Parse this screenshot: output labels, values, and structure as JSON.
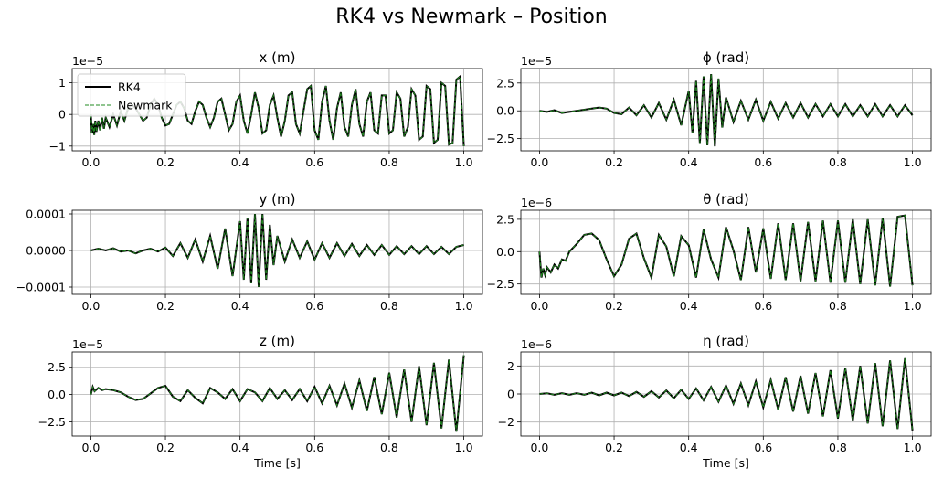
{
  "figure": {
    "title": "RK4 vs Newmark – Position"
  },
  "legend": {
    "location": "upper-left of first subplot",
    "entries": [
      {
        "label": "RK4",
        "color": "#000000",
        "style": "solid"
      },
      {
        "label": "Newmark",
        "color": "#228B22",
        "style": "dashed"
      }
    ]
  },
  "chart_data": [
    {
      "type": "line",
      "title": "x (m)",
      "xlabel": "",
      "ylabel": "",
      "offset_label": "1e−5",
      "xlim": [
        -0.05,
        1.05
      ],
      "ylim": [
        -1.15,
        1.45
      ],
      "xticks": [
        0.0,
        0.2,
        0.4,
        0.6,
        0.8,
        1.0
      ],
      "xtick_labels": [
        "0.0",
        "0.2",
        "0.4",
        "0.6",
        "0.8",
        "1.0"
      ],
      "yticks": [
        -1,
        0,
        1
      ],
      "ytick_labels": [
        "−1",
        "0",
        "1"
      ],
      "grid": true,
      "legend": true,
      "series": [
        {
          "name": "RK4",
          "color": "#000000",
          "style": "solid",
          "x": [
            0.0,
            0.003,
            0.006,
            0.009,
            0.012,
            0.015,
            0.02,
            0.025,
            0.03,
            0.035,
            0.04,
            0.05,
            0.06,
            0.07,
            0.08,
            0.09,
            0.1,
            0.11,
            0.12,
            0.13,
            0.14,
            0.15,
            0.16,
            0.17,
            0.18,
            0.19,
            0.2,
            0.21,
            0.22,
            0.23,
            0.24,
            0.25,
            0.26,
            0.27,
            0.28,
            0.29,
            0.3,
            0.31,
            0.32,
            0.33,
            0.34,
            0.35,
            0.36,
            0.37,
            0.38,
            0.39,
            0.4,
            0.41,
            0.42,
            0.43,
            0.44,
            0.45,
            0.46,
            0.47,
            0.48,
            0.49,
            0.5,
            0.51,
            0.52,
            0.53,
            0.54,
            0.55,
            0.56,
            0.57,
            0.58,
            0.59,
            0.6,
            0.61,
            0.62,
            0.63,
            0.64,
            0.65,
            0.66,
            0.67,
            0.68,
            0.69,
            0.7,
            0.71,
            0.72,
            0.73,
            0.74,
            0.75,
            0.76,
            0.77,
            0.78,
            0.79,
            0.8,
            0.81,
            0.82,
            0.83,
            0.84,
            0.85,
            0.86,
            0.87,
            0.88,
            0.89,
            0.9,
            0.91,
            0.92,
            0.93,
            0.94,
            0.95,
            0.96,
            0.97,
            0.98,
            0.99,
            1.0
          ],
          "y": [
            0.0,
            -0.6,
            -0.3,
            -0.65,
            -0.2,
            -0.55,
            -0.2,
            -0.5,
            -0.1,
            -0.45,
            -0.1,
            -0.4,
            0.0,
            -0.35,
            0.1,
            -0.2,
            0.2,
            0.3,
            0.2,
            0.0,
            -0.2,
            -0.1,
            0.3,
            0.5,
            0.3,
            -0.1,
            -0.35,
            -0.3,
            0.0,
            0.3,
            0.4,
            0.2,
            -0.2,
            -0.3,
            0.1,
            0.4,
            0.3,
            -0.1,
            -0.4,
            -0.1,
            0.4,
            0.5,
            0.0,
            -0.5,
            -0.3,
            0.4,
            0.6,
            -0.2,
            -0.6,
            0.0,
            0.7,
            0.2,
            -0.6,
            -0.5,
            0.3,
            0.6,
            -0.1,
            -0.7,
            -0.2,
            0.6,
            0.7,
            -0.3,
            -0.6,
            0.1,
            0.8,
            0.9,
            -0.5,
            -0.8,
            0.4,
            0.9,
            -0.2,
            -0.8,
            0.2,
            0.7,
            -0.4,
            -0.7,
            0.3,
            0.8,
            -0.3,
            -0.7,
            0.4,
            0.7,
            -0.5,
            -0.6,
            0.6,
            0.6,
            -0.6,
            -0.5,
            0.7,
            0.5,
            -0.7,
            -0.4,
            0.8,
            0.6,
            -0.8,
            -0.7,
            0.9,
            0.8,
            -0.9,
            -0.8,
            1.0,
            0.9,
            -0.95,
            -0.9,
            1.1,
            1.2,
            -1.0
          ]
        },
        {
          "name": "Newmark",
          "color": "#228B22",
          "style": "dashed",
          "same_as": "RK4"
        }
      ]
    },
    {
      "type": "line",
      "title": "ϕ (rad)",
      "xlabel": "",
      "ylabel": "",
      "offset_label": "1e−5",
      "xlim": [
        -0.05,
        1.05
      ],
      "ylim": [
        -3.6,
        3.8
      ],
      "xticks": [
        0.0,
        0.2,
        0.4,
        0.6,
        0.8,
        1.0
      ],
      "xtick_labels": [
        "0.0",
        "0.2",
        "0.4",
        "0.6",
        "0.8",
        "1.0"
      ],
      "yticks": [
        -2.5,
        0.0,
        2.5
      ],
      "ytick_labels": [
        "−2.5",
        "0.0",
        "2.5"
      ],
      "grid": true,
      "series": [
        {
          "name": "RK4",
          "color": "#000000",
          "style": "solid",
          "x": [
            0.0,
            0.02,
            0.04,
            0.06,
            0.08,
            0.1,
            0.12,
            0.14,
            0.16,
            0.18,
            0.2,
            0.22,
            0.24,
            0.26,
            0.28,
            0.3,
            0.32,
            0.34,
            0.36,
            0.38,
            0.4,
            0.41,
            0.42,
            0.43,
            0.44,
            0.45,
            0.46,
            0.47,
            0.48,
            0.49,
            0.5,
            0.52,
            0.54,
            0.56,
            0.58,
            0.6,
            0.62,
            0.64,
            0.66,
            0.68,
            0.7,
            0.72,
            0.74,
            0.76,
            0.78,
            0.8,
            0.82,
            0.84,
            0.86,
            0.88,
            0.9,
            0.92,
            0.94,
            0.96,
            0.98,
            1.0
          ],
          "y": [
            0.0,
            -0.1,
            0.05,
            -0.2,
            -0.1,
            0.0,
            0.1,
            0.2,
            0.3,
            0.2,
            -0.2,
            -0.3,
            0.3,
            -0.4,
            0.5,
            -0.6,
            0.7,
            -0.8,
            1.0,
            -1.3,
            1.8,
            -2.0,
            2.7,
            -2.9,
            3.1,
            -3.1,
            3.3,
            -3.2,
            2.9,
            -1.5,
            1.2,
            -1.0,
            0.9,
            -0.8,
            1.0,
            -0.9,
            0.8,
            -0.7,
            0.7,
            -0.6,
            0.7,
            -0.6,
            0.6,
            -0.5,
            0.6,
            -0.5,
            0.6,
            -0.5,
            0.5,
            -0.5,
            0.6,
            -0.5,
            0.5,
            -0.5,
            0.5,
            -0.4
          ]
        },
        {
          "name": "Newmark",
          "color": "#228B22",
          "style": "dashed",
          "same_as": "RK4"
        }
      ]
    },
    {
      "type": "line",
      "title": "y (m)",
      "xlabel": "",
      "ylabel": "",
      "offset_label": "",
      "xlim": [
        -0.05,
        1.05
      ],
      "ylim": [
        -0.00012,
        0.00011
      ],
      "xticks": [
        0.0,
        0.2,
        0.4,
        0.6,
        0.8,
        1.0
      ],
      "xtick_labels": [
        "0.0",
        "0.2",
        "0.4",
        "0.6",
        "0.8",
        "1.0"
      ],
      "yticks": [
        -0.0001,
        0.0,
        0.0001
      ],
      "ytick_labels": [
        "−0.0001",
        "0.0000",
        "0.0001"
      ],
      "grid": true,
      "series": [
        {
          "name": "RK4",
          "color": "#000000",
          "style": "solid",
          "x": [
            0.0,
            0.02,
            0.04,
            0.06,
            0.08,
            0.1,
            0.12,
            0.14,
            0.16,
            0.18,
            0.2,
            0.22,
            0.24,
            0.26,
            0.28,
            0.3,
            0.32,
            0.34,
            0.36,
            0.38,
            0.4,
            0.41,
            0.42,
            0.43,
            0.44,
            0.45,
            0.46,
            0.47,
            0.48,
            0.49,
            0.5,
            0.52,
            0.54,
            0.56,
            0.58,
            0.6,
            0.62,
            0.64,
            0.66,
            0.68,
            0.7,
            0.72,
            0.74,
            0.76,
            0.78,
            0.8,
            0.82,
            0.84,
            0.86,
            0.88,
            0.9,
            0.92,
            0.94,
            0.96,
            0.98,
            1.0
          ],
          "y": [
            0.0,
            5e-06,
            0.0,
            6e-06,
            -3e-06,
            0.0,
            -8e-06,
            0.0,
            5e-06,
            -3e-06,
            8e-06,
            -1.5e-05,
            2e-05,
            -2e-05,
            3e-05,
            -3e-05,
            4e-05,
            -5e-05,
            6e-05,
            -7e-05,
            8e-05,
            -8e-05,
            9e-05,
            -9e-05,
            0.0001,
            -0.0001,
            0.0001,
            -8e-05,
            7e-05,
            -4e-05,
            4e-05,
            -3e-05,
            3e-05,
            -2e-05,
            2.5e-05,
            -2.5e-05,
            2e-05,
            -2e-05,
            2e-05,
            -1.5e-05,
            1.8e-05,
            -1.5e-05,
            1.5e-05,
            -1.2e-05,
            1.5e-05,
            -1.2e-05,
            1.2e-05,
            -1e-05,
            1.2e-05,
            -1e-05,
            1.2e-05,
            -1e-05,
            1e-05,
            -1e-05,
            1e-05,
            1.5e-05
          ]
        },
        {
          "name": "Newmark",
          "color": "#228B22",
          "style": "dashed",
          "same_as": "RK4"
        }
      ]
    },
    {
      "type": "line",
      "title": "θ (rad)",
      "xlabel": "",
      "ylabel": "",
      "offset_label": "1e−6",
      "xlim": [
        -0.05,
        1.05
      ],
      "ylim": [
        -3.3,
        3.2
      ],
      "xticks": [
        0.0,
        0.2,
        0.4,
        0.6,
        0.8,
        1.0
      ],
      "xtick_labels": [
        "0.0",
        "0.2",
        "0.4",
        "0.6",
        "0.8",
        "1.0"
      ],
      "yticks": [
        -2.5,
        0.0,
        2.5
      ],
      "ytick_labels": [
        "−2.5",
        "0.0",
        "2.5"
      ],
      "grid": true,
      "series": [
        {
          "name": "RK4",
          "color": "#000000",
          "style": "solid",
          "x": [
            0.0,
            0.005,
            0.01,
            0.015,
            0.02,
            0.03,
            0.04,
            0.05,
            0.06,
            0.07,
            0.08,
            0.1,
            0.12,
            0.14,
            0.16,
            0.18,
            0.2,
            0.22,
            0.24,
            0.26,
            0.28,
            0.3,
            0.32,
            0.34,
            0.36,
            0.38,
            0.4,
            0.42,
            0.44,
            0.46,
            0.48,
            0.5,
            0.52,
            0.54,
            0.56,
            0.58,
            0.6,
            0.62,
            0.64,
            0.66,
            0.68,
            0.7,
            0.72,
            0.74,
            0.76,
            0.78,
            0.8,
            0.82,
            0.84,
            0.86,
            0.88,
            0.9,
            0.92,
            0.94,
            0.96,
            0.98,
            1.0
          ],
          "y": [
            0.0,
            -2.0,
            -1.3,
            -1.8,
            -1.2,
            -1.6,
            -1.0,
            -1.3,
            -0.6,
            -0.7,
            0.0,
            0.6,
            1.3,
            1.4,
            0.9,
            -0.6,
            -1.9,
            -1.0,
            1.0,
            1.4,
            -0.5,
            -2.0,
            1.3,
            0.4,
            -1.9,
            1.2,
            0.5,
            -2.0,
            1.7,
            -0.6,
            -2.0,
            1.9,
            0.1,
            -2.2,
            1.9,
            -1.6,
            1.8,
            -2.1,
            2.2,
            -2.2,
            2.2,
            -2.3,
            2.3,
            -2.3,
            2.4,
            -2.4,
            2.4,
            -2.4,
            2.5,
            -2.5,
            2.5,
            -2.6,
            2.6,
            -2.7,
            2.7,
            2.8,
            -2.6
          ]
        },
        {
          "name": "Newmark",
          "color": "#228B22",
          "style": "dashed",
          "same_as": "RK4"
        }
      ]
    },
    {
      "type": "line",
      "title": "z (m)",
      "xlabel": "Time [s]",
      "ylabel": "",
      "offset_label": "1e−5",
      "xlim": [
        -0.05,
        1.05
      ],
      "ylim": [
        -3.8,
        3.9
      ],
      "xticks": [
        0.0,
        0.2,
        0.4,
        0.6,
        0.8,
        1.0
      ],
      "xtick_labels": [
        "0.0",
        "0.2",
        "0.4",
        "0.6",
        "0.8",
        "1.0"
      ],
      "yticks": [
        -2.5,
        0.0,
        2.5
      ],
      "ytick_labels": [
        "−2.5",
        "0.0",
        "2.5"
      ],
      "grid": true,
      "series": [
        {
          "name": "RK4",
          "color": "#000000",
          "style": "solid",
          "x": [
            0.0,
            0.005,
            0.01,
            0.02,
            0.03,
            0.04,
            0.06,
            0.08,
            0.1,
            0.12,
            0.14,
            0.16,
            0.18,
            0.2,
            0.22,
            0.24,
            0.26,
            0.28,
            0.3,
            0.32,
            0.34,
            0.36,
            0.38,
            0.4,
            0.42,
            0.44,
            0.46,
            0.48,
            0.5,
            0.52,
            0.54,
            0.56,
            0.58,
            0.6,
            0.62,
            0.64,
            0.66,
            0.68,
            0.7,
            0.72,
            0.74,
            0.76,
            0.78,
            0.8,
            0.82,
            0.84,
            0.86,
            0.88,
            0.9,
            0.92,
            0.94,
            0.96,
            0.98,
            1.0
          ],
          "y": [
            0.0,
            0.7,
            0.3,
            0.6,
            0.4,
            0.5,
            0.4,
            0.2,
            -0.2,
            -0.5,
            -0.4,
            0.1,
            0.6,
            0.8,
            -0.2,
            -0.6,
            0.4,
            -0.3,
            -0.8,
            0.6,
            0.2,
            -0.4,
            0.5,
            -0.6,
            0.5,
            0.2,
            -0.6,
            0.6,
            -0.4,
            0.4,
            -0.5,
            0.5,
            -0.6,
            0.7,
            -0.8,
            0.8,
            -1.0,
            1.0,
            -1.2,
            1.3,
            -1.5,
            1.6,
            -1.8,
            2.0,
            -2.1,
            2.3,
            -2.5,
            2.6,
            -2.8,
            2.9,
            -3.1,
            3.2,
            -3.4,
            3.6
          ]
        },
        {
          "name": "Newmark",
          "color": "#228B22",
          "style": "dashed",
          "same_as": "RK4"
        }
      ]
    },
    {
      "type": "line",
      "title": "η (rad)",
      "xlabel": "Time [s]",
      "ylabel": "",
      "offset_label": "1e−6",
      "xlim": [
        -0.05,
        1.05
      ],
      "ylim": [
        -3.0,
        3.0
      ],
      "xticks": [
        0.0,
        0.2,
        0.4,
        0.6,
        0.8,
        1.0
      ],
      "xtick_labels": [
        "0.0",
        "0.2",
        "0.4",
        "0.6",
        "0.8",
        "1.0"
      ],
      "yticks": [
        -2,
        0,
        2
      ],
      "ytick_labels": [
        "−2",
        "0",
        "2"
      ],
      "grid": true,
      "series": [
        {
          "name": "RK4",
          "color": "#000000",
          "style": "solid",
          "x": [
            0.0,
            0.02,
            0.04,
            0.06,
            0.08,
            0.1,
            0.12,
            0.14,
            0.16,
            0.18,
            0.2,
            0.22,
            0.24,
            0.26,
            0.28,
            0.3,
            0.32,
            0.34,
            0.36,
            0.38,
            0.4,
            0.42,
            0.44,
            0.46,
            0.48,
            0.5,
            0.52,
            0.54,
            0.56,
            0.58,
            0.6,
            0.62,
            0.64,
            0.66,
            0.68,
            0.7,
            0.72,
            0.74,
            0.76,
            0.78,
            0.8,
            0.82,
            0.84,
            0.86,
            0.88,
            0.9,
            0.92,
            0.94,
            0.96,
            0.98,
            1.0
          ],
          "y": [
            0.0,
            0.05,
            -0.05,
            0.05,
            -0.05,
            0.05,
            -0.05,
            0.1,
            -0.1,
            0.1,
            -0.1,
            0.1,
            -0.15,
            0.15,
            -0.2,
            0.2,
            -0.25,
            0.25,
            -0.3,
            0.3,
            -0.35,
            0.4,
            -0.45,
            0.5,
            -0.55,
            0.6,
            -0.7,
            0.75,
            -0.8,
            0.9,
            -0.95,
            1.0,
            -1.1,
            1.2,
            -1.25,
            1.3,
            -1.4,
            1.5,
            -1.6,
            1.7,
            -1.75,
            1.85,
            -1.9,
            2.0,
            -2.1,
            2.2,
            -2.3,
            2.4,
            -2.5,
            2.55,
            -2.6
          ]
        },
        {
          "name": "Newmark",
          "color": "#228B22",
          "style": "dashed",
          "same_as": "RK4"
        }
      ]
    }
  ]
}
